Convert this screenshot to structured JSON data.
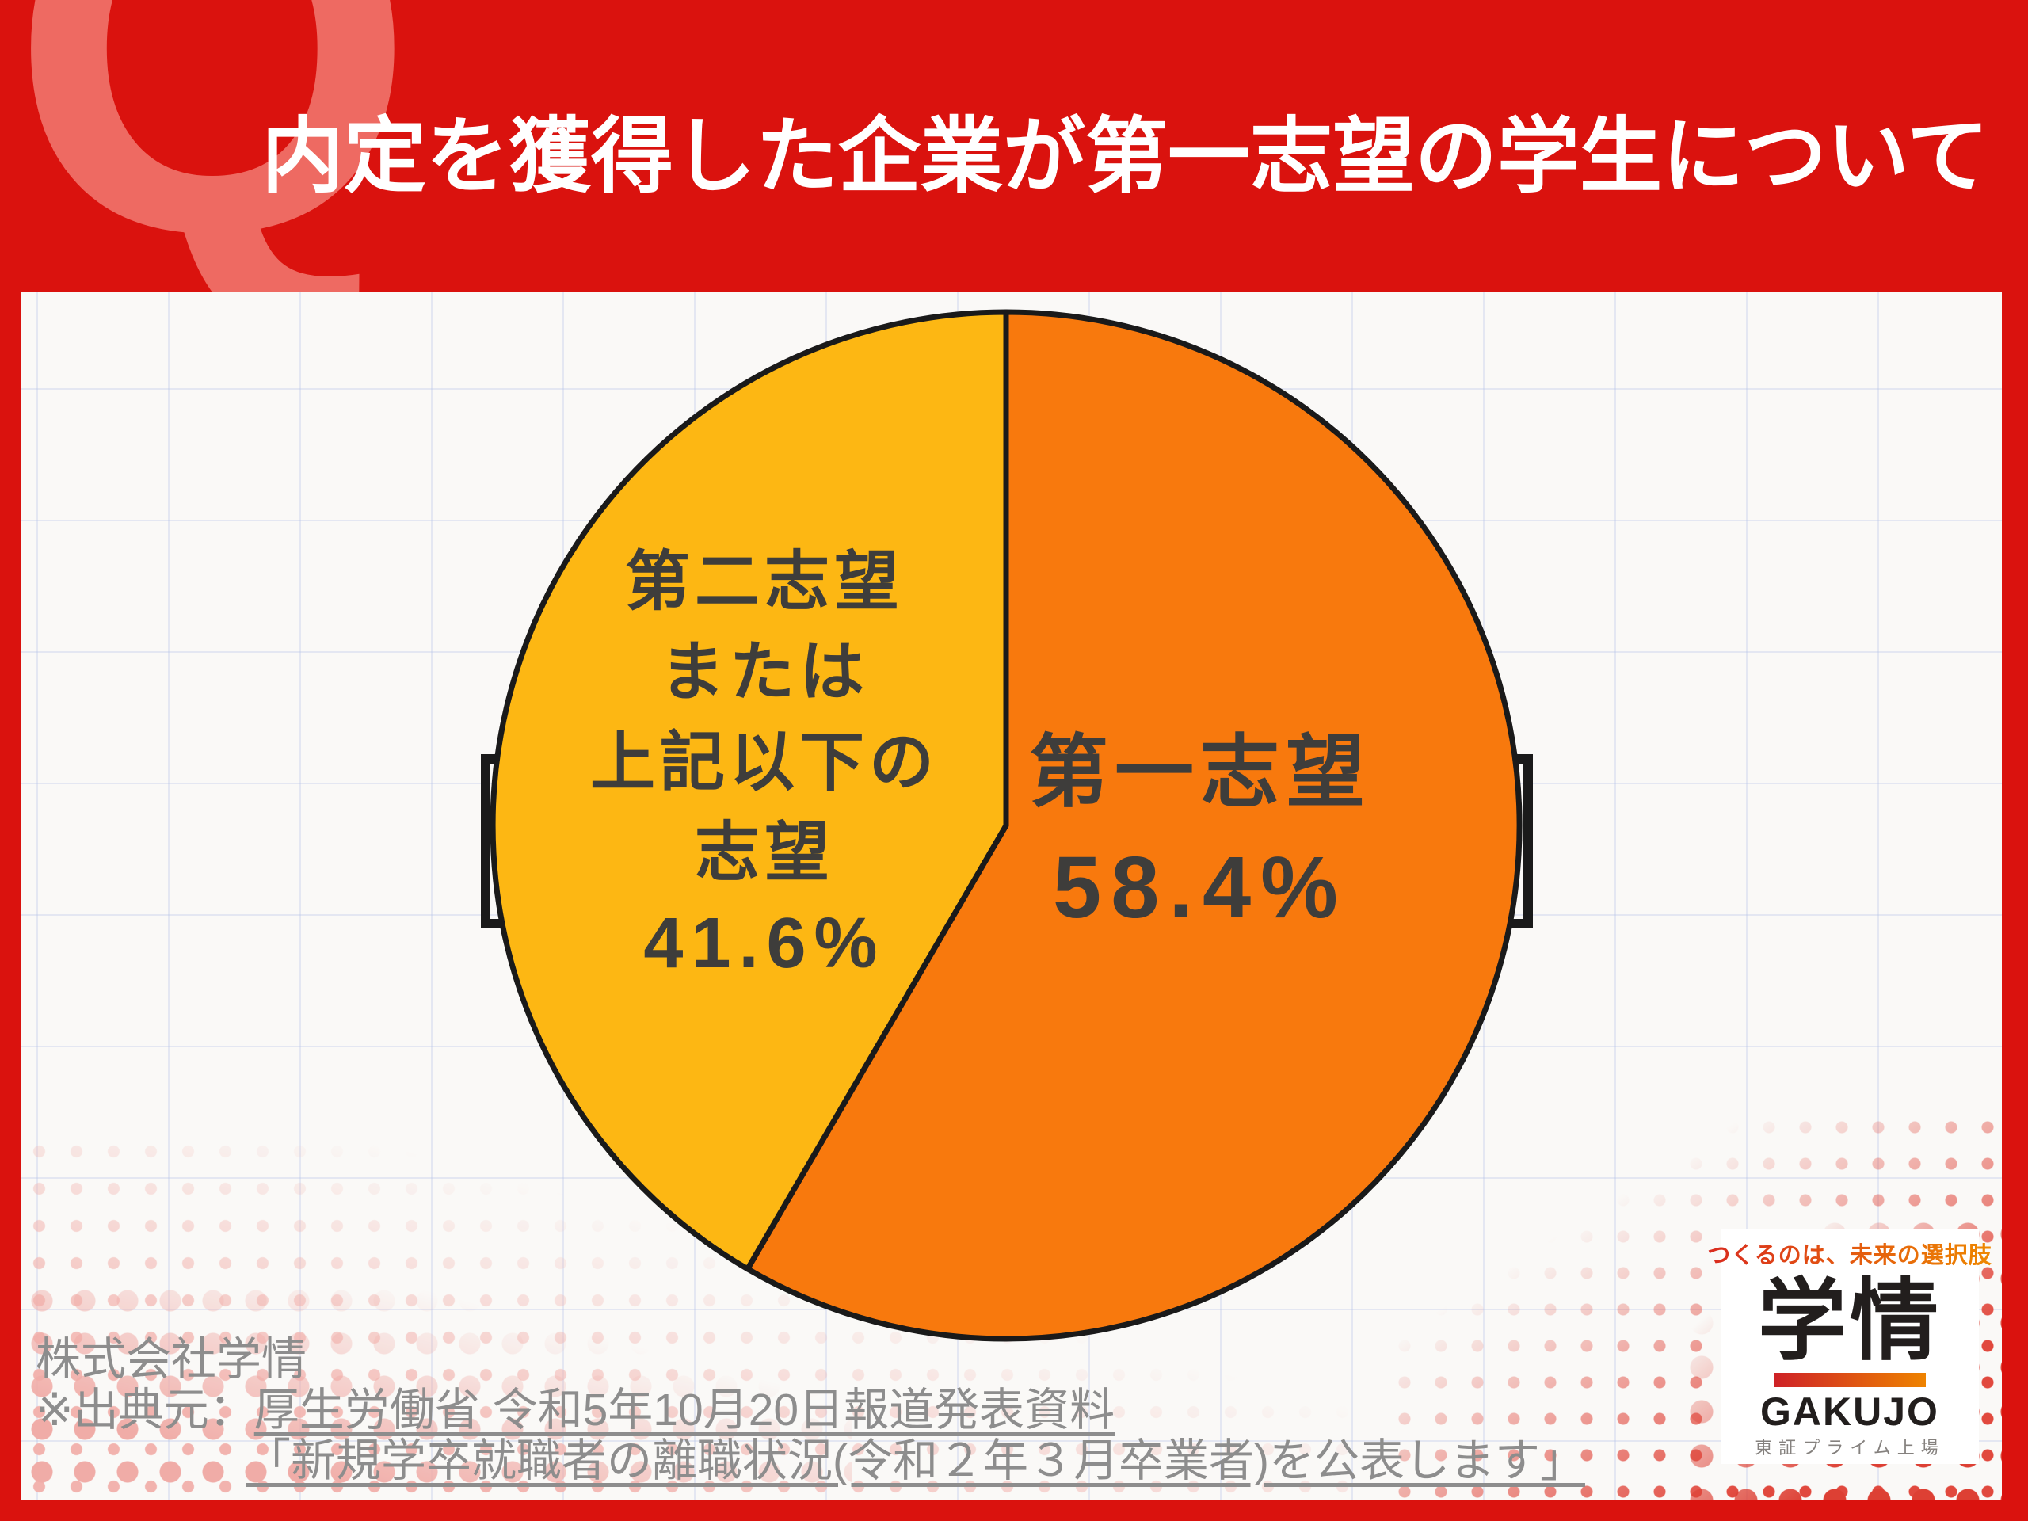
{
  "header": {
    "q_letter": "Q",
    "title": "内定を獲得した企業が第一志望の学生について"
  },
  "chart_data": {
    "type": "pie",
    "title": "内定を獲得した企業が第一志望の学生について",
    "direction": "clockwise",
    "start_angle_deg": 0,
    "outline_color": "#1a1a1a",
    "slices": [
      {
        "label": "第一志望",
        "value": 58.4,
        "value_text": "58.4%",
        "color": "#f8790d",
        "label_lines": [
          "第一志望",
          "58.4%"
        ]
      },
      {
        "label": "第二志望または上記以下の志望",
        "value": 41.6,
        "value_text": "41.6%",
        "color": "#fdb713",
        "label_lines": [
          "第二志望",
          "または",
          "上記以下の",
          "志望",
          "41.6%"
        ]
      }
    ]
  },
  "footer": {
    "company": "株式会社学情",
    "source_prefix": "※出典元：",
    "source_link_line1": "厚生労働省 令和5年10月20日報道発表資料",
    "source_link_line2": "「新規学卒就職者の離職状況(令和２年３月卒業者)を公表します」"
  },
  "logo": {
    "tagline": "つくるのは、未来の選択肢",
    "name_jp": "学情",
    "name_en": "GAKUJO",
    "listing": "東証プライム上場"
  },
  "colors": {
    "background_red": "#da120e",
    "q_letter_red": "#ee6a62",
    "panel_white": "#faf9f7",
    "pie_orange": "#f8790d",
    "pie_yellow": "#fdb713",
    "pie_outline": "#1a1a1a",
    "slice_label_text": "#3e3d3b",
    "footer_gray": "#8d8d8d",
    "halftone_pink": "#f2b3ae",
    "halftone_red": "#e1493e",
    "logo_gradient_start": "#d92b1f",
    "logo_gradient_end": "#ee8800"
  }
}
